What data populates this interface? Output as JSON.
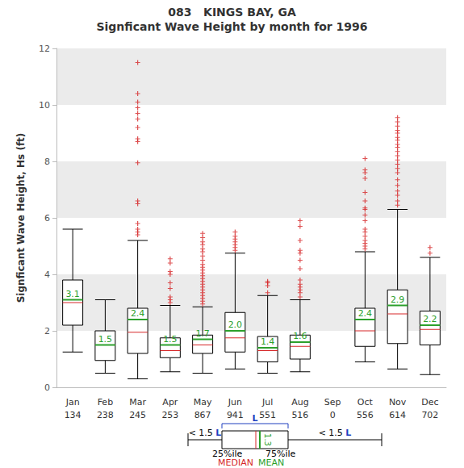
{
  "chart_data": {
    "type": "boxplot",
    "title": "083   KINGS BAY, GA",
    "subtitle": "Signficant Wave Height by month for 1996",
    "y_label": "Signficant Wave Height, Hs (ft)",
    "categories": [
      "Jan",
      "Feb",
      "Mar",
      "Apr",
      "May",
      "Jun",
      "Jul",
      "Aug",
      "Sep",
      "Oct",
      "Nov",
      "Dec"
    ],
    "counts": [
      134,
      238,
      245,
      253,
      867,
      941,
      551,
      516,
      0,
      556,
      614,
      702
    ],
    "boxes": [
      [
        1.25,
        2.2,
        3.0,
        3.8,
        5.6
      ],
      [
        0.5,
        0.95,
        1.5,
        2.0,
        3.1
      ],
      [
        0.3,
        1.2,
        1.95,
        2.8,
        5.2
      ],
      [
        0.55,
        1.05,
        1.3,
        1.75,
        2.9
      ],
      [
        0.5,
        1.2,
        1.5,
        1.85,
        2.85
      ],
      [
        0.65,
        1.25,
        1.75,
        2.65,
        4.75
      ],
      [
        0.5,
        0.9,
        1.3,
        1.8,
        3.25
      ],
      [
        0.55,
        1.0,
        1.45,
        1.85,
        3.1
      ],
      null,
      [
        0.9,
        1.45,
        2.0,
        2.8,
        4.8
      ],
      [
        0.65,
        1.55,
        2.6,
        3.45,
        6.3
      ],
      [
        0.45,
        1.5,
        2.05,
        2.7,
        4.6
      ]
    ],
    "means": [
      3.1,
      1.5,
      2.4,
      1.5,
      1.7,
      2.0,
      1.4,
      1.6,
      null,
      2.4,
      2.9,
      2.2
    ],
    "mean_labels": [
      "3.1",
      "1.5",
      "2.4",
      "1.5",
      "1.7",
      "2.0",
      "1.4",
      "1.6",
      null,
      "2.4",
      "2.9",
      "2.2"
    ],
    "outliers": [
      [],
      [],
      [
        5.4,
        5.5,
        5.6,
        5.8,
        6.5,
        6.6,
        7.95,
        8.7,
        8.8,
        9.2,
        9.5,
        9.7,
        9.9,
        10.1,
        10.4,
        11.5
      ],
      [
        3.0,
        3.1,
        3.2,
        3.5,
        3.7,
        4.0,
        4.1,
        4.4,
        4.55
      ],
      [
        2.95,
        3.05,
        3.15,
        3.25,
        3.35,
        3.45,
        3.55,
        3.65,
        3.75,
        3.85,
        3.95,
        4.05,
        4.15,
        4.25,
        4.35,
        4.5,
        4.65,
        4.8,
        4.9,
        5.05,
        5.15,
        5.3,
        5.45
      ],
      [
        4.85,
        4.95,
        5.05,
        5.15,
        5.25,
        5.35,
        5.5
      ],
      [
        3.35,
        3.6,
        3.7,
        3.75
      ],
      [
        3.2,
        3.35,
        3.45,
        3.55,
        3.65,
        3.8,
        4.2,
        4.5,
        4.75,
        4.85,
        5.2,
        5.7,
        5.9
      ],
      [],
      [
        4.9,
        5.0,
        5.1,
        5.2,
        5.35,
        5.5,
        5.6,
        5.9,
        6.1,
        6.3,
        6.35,
        6.6,
        6.9,
        7.4,
        7.6,
        7.7,
        8.1
      ],
      [
        6.45,
        6.6,
        6.8,
        6.95,
        7.15,
        7.35,
        7.6,
        7.75,
        7.9,
        8.05,
        8.2,
        8.35,
        8.5,
        8.6,
        8.75,
        8.85,
        9.0,
        9.1,
        9.25,
        9.4,
        9.55
      ],
      [
        4.75,
        4.95
      ]
    ],
    "colors": {
      "box": "#000000",
      "median": "#d62728",
      "mean": "#2ca02c",
      "outlier": "#d62728"
    },
    "ylim": [
      0,
      12
    ],
    "yticks": [
      0,
      2,
      4,
      6,
      8,
      10,
      12
    ],
    "grid": true,
    "key": {
      "whisker": "< 1.5",
      "iqr": "L",
      "q1": "25%ile",
      "q3": "75%ile",
      "median": "MEDIAN",
      "mean": "MEAN",
      "mean_value": "1.3"
    }
  }
}
